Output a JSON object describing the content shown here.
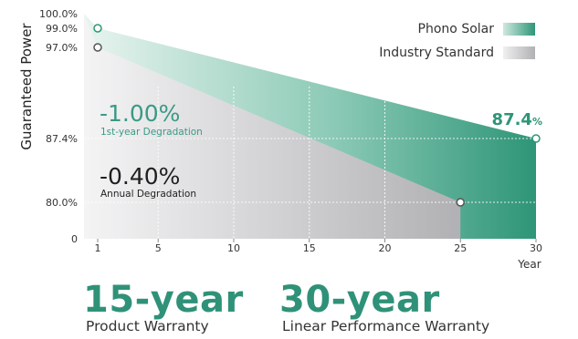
{
  "chart_data": {
    "type": "area",
    "ylabel": "Guaranteed Power",
    "xlabel": "Year",
    "x_ticks": [
      1,
      5,
      10,
      15,
      20,
      25,
      30
    ],
    "y_ticks": [
      {
        "value": 0,
        "label": "0"
      },
      {
        "value": 80,
        "label": "80.0%"
      },
      {
        "value": 87.4,
        "label": "87.4%"
      },
      {
        "value": 97,
        "label": "97.0%"
      },
      {
        "value": 99,
        "label": "99.0%"
      },
      {
        "value": 100,
        "label": "100.0%"
      }
    ],
    "series": [
      {
        "name": "Phono Solar",
        "color": "#2e9577",
        "points": [
          [
            0,
            100
          ],
          [
            1,
            99
          ],
          [
            30,
            87.4
          ]
        ]
      },
      {
        "name": "Industry Standard",
        "color": "#b4b4b6",
        "points": [
          [
            0,
            100
          ],
          [
            1,
            97
          ],
          [
            25,
            80
          ]
        ]
      }
    ],
    "end_label": {
      "value": "87.4",
      "unit": "%"
    },
    "annotations": [
      {
        "value": "-1.00%",
        "caption": "1st-year Degradation"
      },
      {
        "value": "-0.40%",
        "caption": "Annual Degradation"
      }
    ],
    "legend_position": "top-right"
  },
  "warranties": [
    {
      "years": "15-year",
      "label": "Product Warranty"
    },
    {
      "years": "30-year",
      "label": "Linear Performance Warranty"
    }
  ]
}
